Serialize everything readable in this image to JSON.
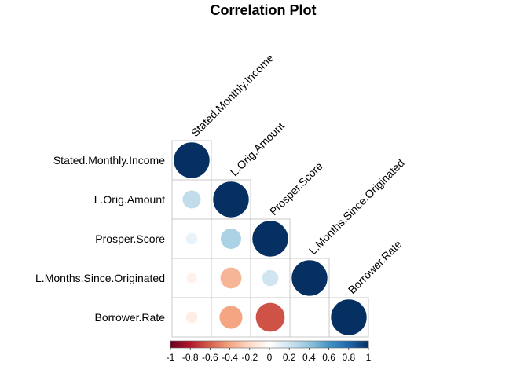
{
  "chart_data": {
    "type": "heatmap",
    "title": "Correlation Plot",
    "variables": [
      "Stated.Monthly.Income",
      "L.Orig.Amount",
      "Prosper.Score",
      "L.Months.Since.Originated",
      "Borrower.Rate"
    ],
    "matrix_lower": [
      [
        1
      ],
      [
        0.25,
        1
      ],
      [
        0.1,
        0.32,
        1
      ],
      [
        -0.08,
        -0.34,
        0.2,
        1
      ],
      [
        -0.1,
        -0.4,
        -0.64,
        0.01,
        1
      ]
    ],
    "colorbar": {
      "range": [
        -1,
        1
      ],
      "tick_labels": [
        "-1",
        "-0.8",
        "-0.6",
        "-0.4",
        "-0.2",
        "0",
        "0.2",
        "0.4",
        "0.6",
        "0.8",
        "1"
      ],
      "tick_values": [
        -1,
        -0.8,
        -0.6,
        -0.4,
        -0.2,
        0,
        0.2,
        0.4,
        0.6,
        0.8,
        1
      ]
    },
    "layout": "lower-triangle, circle glyphs, diagonal labels",
    "colors": {
      "neg_strong": "#67001F",
      "neutral": "#FFFFFF",
      "pos_strong": "#053061"
    }
  }
}
